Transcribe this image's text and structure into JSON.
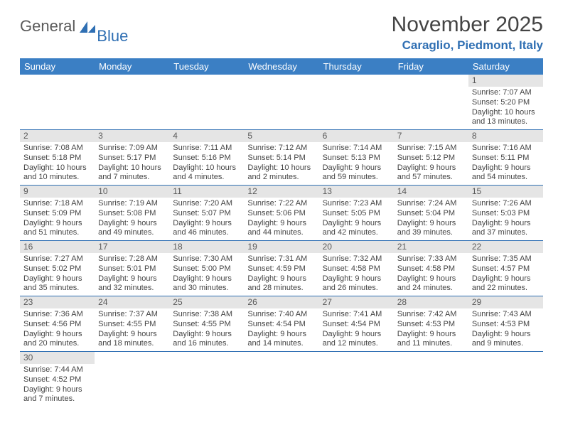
{
  "brand": {
    "part1": "General",
    "part2": "Blue"
  },
  "title": "November 2025",
  "location": "Caraglio, Piedmont, Italy",
  "dayHeaders": [
    "Sunday",
    "Monday",
    "Tuesday",
    "Wednesday",
    "Thursday",
    "Friday",
    "Saturday"
  ],
  "colors": {
    "headerBg": "#3b7fc4",
    "accent": "#2f6fb3",
    "dayNumBg": "#e5e5e5",
    "text": "#444444"
  },
  "weeks": [
    [
      null,
      null,
      null,
      null,
      null,
      null,
      {
        "n": "1",
        "sr": "Sunrise: 7:07 AM",
        "ss": "Sunset: 5:20 PM",
        "dl": "Daylight: 10 hours and 13 minutes."
      }
    ],
    [
      {
        "n": "2",
        "sr": "Sunrise: 7:08 AM",
        "ss": "Sunset: 5:18 PM",
        "dl": "Daylight: 10 hours and 10 minutes."
      },
      {
        "n": "3",
        "sr": "Sunrise: 7:09 AM",
        "ss": "Sunset: 5:17 PM",
        "dl": "Daylight: 10 hours and 7 minutes."
      },
      {
        "n": "4",
        "sr": "Sunrise: 7:11 AM",
        "ss": "Sunset: 5:16 PM",
        "dl": "Daylight: 10 hours and 4 minutes."
      },
      {
        "n": "5",
        "sr": "Sunrise: 7:12 AM",
        "ss": "Sunset: 5:14 PM",
        "dl": "Daylight: 10 hours and 2 minutes."
      },
      {
        "n": "6",
        "sr": "Sunrise: 7:14 AM",
        "ss": "Sunset: 5:13 PM",
        "dl": "Daylight: 9 hours and 59 minutes."
      },
      {
        "n": "7",
        "sr": "Sunrise: 7:15 AM",
        "ss": "Sunset: 5:12 PM",
        "dl": "Daylight: 9 hours and 57 minutes."
      },
      {
        "n": "8",
        "sr": "Sunrise: 7:16 AM",
        "ss": "Sunset: 5:11 PM",
        "dl": "Daylight: 9 hours and 54 minutes."
      }
    ],
    [
      {
        "n": "9",
        "sr": "Sunrise: 7:18 AM",
        "ss": "Sunset: 5:09 PM",
        "dl": "Daylight: 9 hours and 51 minutes."
      },
      {
        "n": "10",
        "sr": "Sunrise: 7:19 AM",
        "ss": "Sunset: 5:08 PM",
        "dl": "Daylight: 9 hours and 49 minutes."
      },
      {
        "n": "11",
        "sr": "Sunrise: 7:20 AM",
        "ss": "Sunset: 5:07 PM",
        "dl": "Daylight: 9 hours and 46 minutes."
      },
      {
        "n": "12",
        "sr": "Sunrise: 7:22 AM",
        "ss": "Sunset: 5:06 PM",
        "dl": "Daylight: 9 hours and 44 minutes."
      },
      {
        "n": "13",
        "sr": "Sunrise: 7:23 AM",
        "ss": "Sunset: 5:05 PM",
        "dl": "Daylight: 9 hours and 42 minutes."
      },
      {
        "n": "14",
        "sr": "Sunrise: 7:24 AM",
        "ss": "Sunset: 5:04 PM",
        "dl": "Daylight: 9 hours and 39 minutes."
      },
      {
        "n": "15",
        "sr": "Sunrise: 7:26 AM",
        "ss": "Sunset: 5:03 PM",
        "dl": "Daylight: 9 hours and 37 minutes."
      }
    ],
    [
      {
        "n": "16",
        "sr": "Sunrise: 7:27 AM",
        "ss": "Sunset: 5:02 PM",
        "dl": "Daylight: 9 hours and 35 minutes."
      },
      {
        "n": "17",
        "sr": "Sunrise: 7:28 AM",
        "ss": "Sunset: 5:01 PM",
        "dl": "Daylight: 9 hours and 32 minutes."
      },
      {
        "n": "18",
        "sr": "Sunrise: 7:30 AM",
        "ss": "Sunset: 5:00 PM",
        "dl": "Daylight: 9 hours and 30 minutes."
      },
      {
        "n": "19",
        "sr": "Sunrise: 7:31 AM",
        "ss": "Sunset: 4:59 PM",
        "dl": "Daylight: 9 hours and 28 minutes."
      },
      {
        "n": "20",
        "sr": "Sunrise: 7:32 AM",
        "ss": "Sunset: 4:58 PM",
        "dl": "Daylight: 9 hours and 26 minutes."
      },
      {
        "n": "21",
        "sr": "Sunrise: 7:33 AM",
        "ss": "Sunset: 4:58 PM",
        "dl": "Daylight: 9 hours and 24 minutes."
      },
      {
        "n": "22",
        "sr": "Sunrise: 7:35 AM",
        "ss": "Sunset: 4:57 PM",
        "dl": "Daylight: 9 hours and 22 minutes."
      }
    ],
    [
      {
        "n": "23",
        "sr": "Sunrise: 7:36 AM",
        "ss": "Sunset: 4:56 PM",
        "dl": "Daylight: 9 hours and 20 minutes."
      },
      {
        "n": "24",
        "sr": "Sunrise: 7:37 AM",
        "ss": "Sunset: 4:55 PM",
        "dl": "Daylight: 9 hours and 18 minutes."
      },
      {
        "n": "25",
        "sr": "Sunrise: 7:38 AM",
        "ss": "Sunset: 4:55 PM",
        "dl": "Daylight: 9 hours and 16 minutes."
      },
      {
        "n": "26",
        "sr": "Sunrise: 7:40 AM",
        "ss": "Sunset: 4:54 PM",
        "dl": "Daylight: 9 hours and 14 minutes."
      },
      {
        "n": "27",
        "sr": "Sunrise: 7:41 AM",
        "ss": "Sunset: 4:54 PM",
        "dl": "Daylight: 9 hours and 12 minutes."
      },
      {
        "n": "28",
        "sr": "Sunrise: 7:42 AM",
        "ss": "Sunset: 4:53 PM",
        "dl": "Daylight: 9 hours and 11 minutes."
      },
      {
        "n": "29",
        "sr": "Sunrise: 7:43 AM",
        "ss": "Sunset: 4:53 PM",
        "dl": "Daylight: 9 hours and 9 minutes."
      }
    ],
    [
      {
        "n": "30",
        "sr": "Sunrise: 7:44 AM",
        "ss": "Sunset: 4:52 PM",
        "dl": "Daylight: 9 hours and 7 minutes."
      },
      null,
      null,
      null,
      null,
      null,
      null
    ]
  ]
}
